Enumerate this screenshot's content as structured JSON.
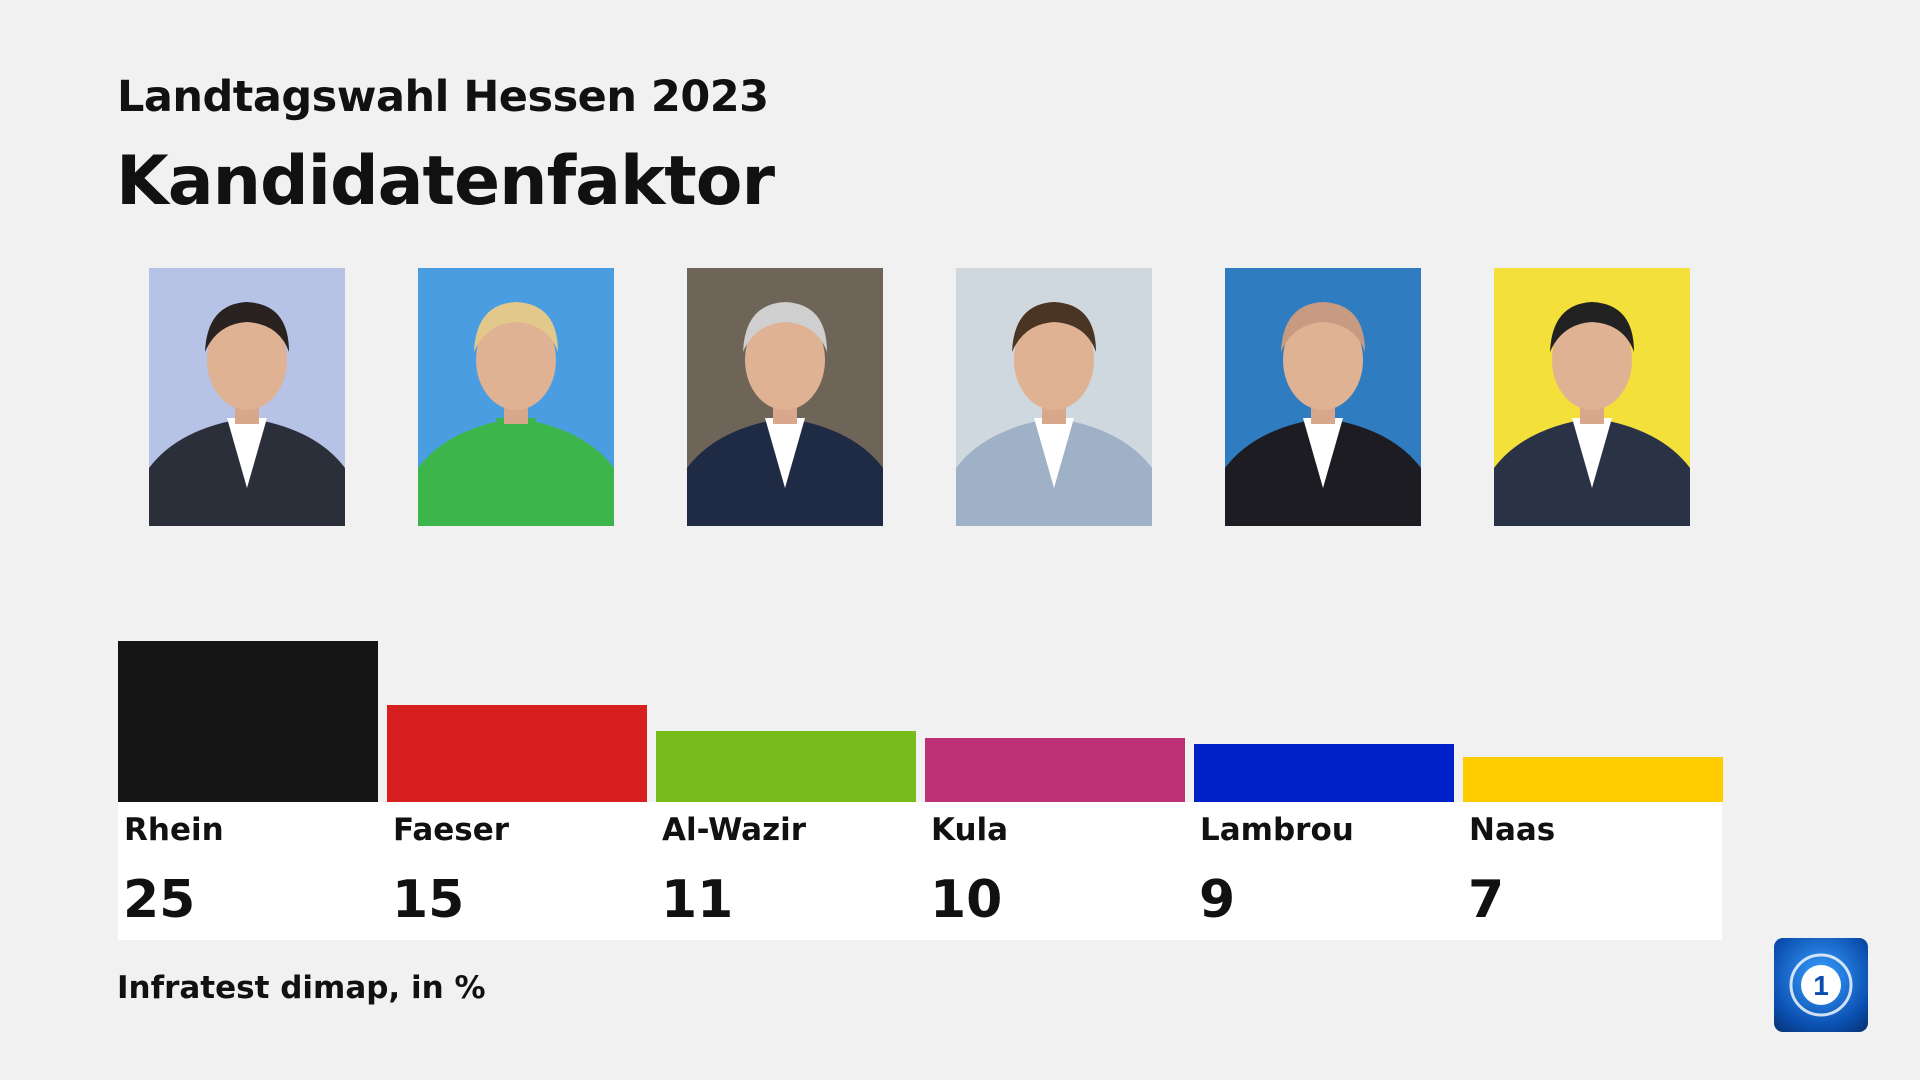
{
  "header": {
    "subtitle": "Landtagswahl Hessen 2023",
    "title": "Kandidatenfaktor"
  },
  "chart_data": {
    "type": "bar",
    "title": "Kandidatenfaktor",
    "subtitle": "Landtagswahl Hessen 2023",
    "categories": [
      "Rhein",
      "Faeser",
      "Al-Wazir",
      "Kula",
      "Lambrou",
      "Naas"
    ],
    "values": [
      25,
      15,
      11,
      10,
      9,
      7
    ],
    "value_labels": [
      "25",
      "15",
      "11",
      "10",
      "9",
      "7"
    ],
    "colors": [
      "#141414",
      "#d71f1f",
      "#78bc1b",
      "#bd3075",
      "#0021c8",
      "#ffcc00"
    ],
    "grid": false,
    "ylim": [
      0,
      25
    ]
  },
  "photos": [
    {
      "bg": "#b7c3e6",
      "suit": "#2b2f3a",
      "hair": "#2a2220",
      "shirt": "#ffffff"
    },
    {
      "bg": "#4a9de0",
      "suit": "#3cb64a",
      "hair": "#e2c88a",
      "shirt": "#3cb64a"
    },
    {
      "bg": "#6e6458",
      "suit": "#1f2a45",
      "hair": "#cfcfcf",
      "shirt": "#ffffff"
    },
    {
      "bg": "#cfd8de",
      "suit": "#9fb1c6",
      "hair": "#4a3424",
      "shirt": "#ffffff"
    },
    {
      "bg": "#2f7cc0",
      "suit": "#1c1c22",
      "hair": "#c79a82",
      "shirt": "#ffffff"
    },
    {
      "bg": "#f3e03a",
      "suit": "#2a3246",
      "hair": "#222222",
      "shirt": "#ffffff"
    }
  ],
  "footer": {
    "source": "Infratest dimap, in %"
  },
  "logo": {
    "name": "ard-das-erste-icon"
  }
}
